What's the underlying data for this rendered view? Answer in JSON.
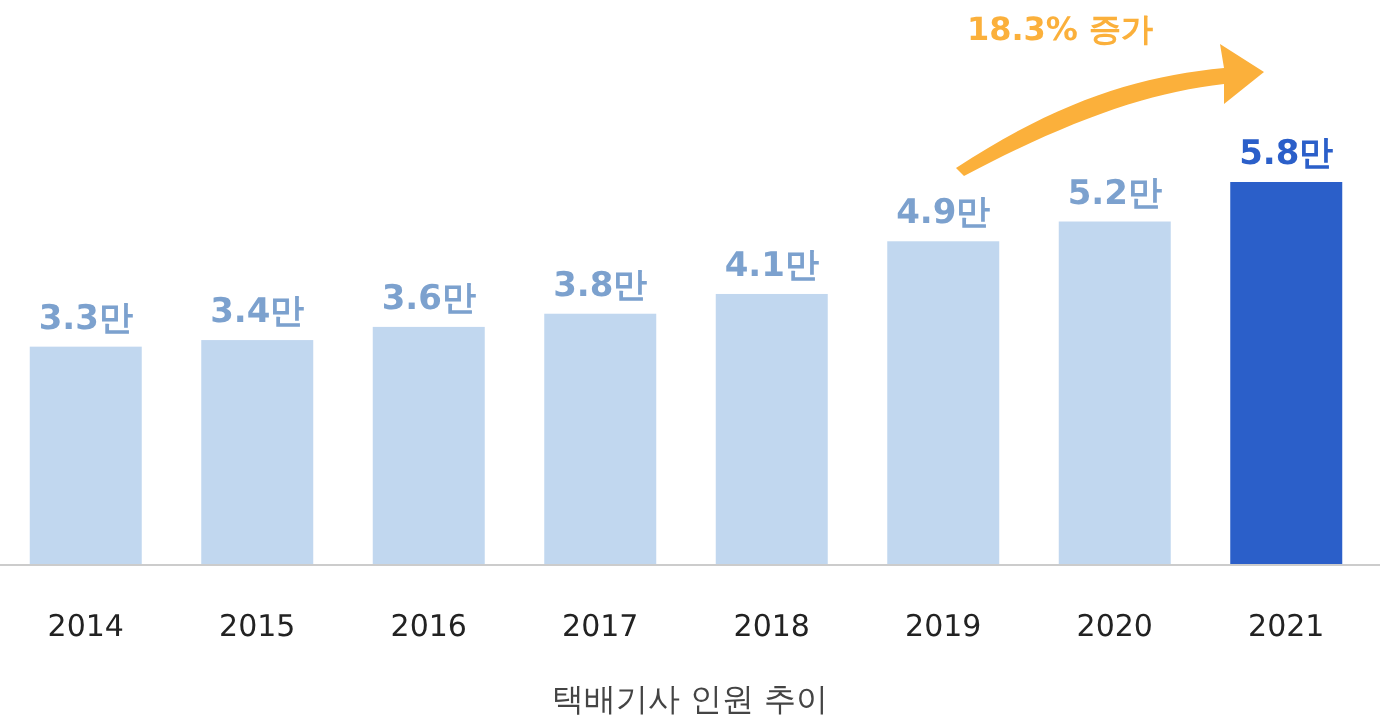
{
  "chart_data": {
    "type": "bar",
    "categories": [
      "2014",
      "2015",
      "2016",
      "2017",
      "2018",
      "2019",
      "2020",
      "2021"
    ],
    "values": [
      3.3,
      3.4,
      3.6,
      3.8,
      4.1,
      4.9,
      5.2,
      5.8
    ],
    "value_labels": [
      "3.3만",
      "3.4만",
      "3.6만",
      "3.8만",
      "4.1만",
      "4.9만",
      "5.2만",
      "5.8만"
    ],
    "colors": [
      "#c1d7ef",
      "#c1d7ef",
      "#c1d7ef",
      "#c1d7ef",
      "#c1d7ef",
      "#c1d7ef",
      "#c1d7ef",
      "#2b5fc9"
    ],
    "xlabel": "택배기사 인원 추이",
    "annotations": [
      "18.3% 증가"
    ]
  }
}
